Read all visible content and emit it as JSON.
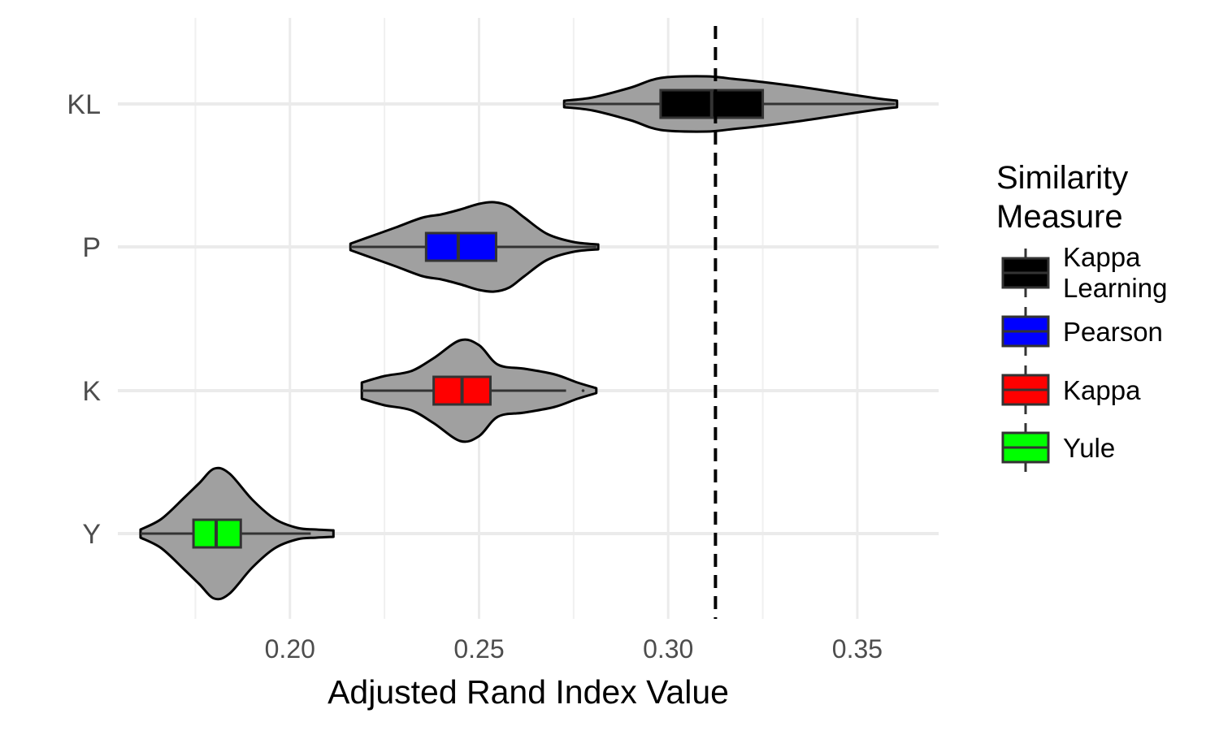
{
  "chart_data": {
    "type": "violin",
    "orientation": "horizontal",
    "title": "",
    "xlabel": "Adjusted Rand Index Value",
    "ylabel": "",
    "xlim": [
      0.1545,
      0.3715
    ],
    "x_ticks": [
      0.2,
      0.25,
      0.3,
      0.35
    ],
    "x_tick_labels": [
      "0.20",
      "0.25",
      "0.30",
      "0.35"
    ],
    "x_minor_ticks": [
      0.175,
      0.225,
      0.275,
      0.325
    ],
    "categories": [
      "KL",
      "P",
      "K",
      "Y"
    ],
    "reference_line": {
      "x": 0.3125,
      "style": "dashed",
      "color": "#000000"
    },
    "violin_fill": "#a0a0a0",
    "grid": true,
    "legend": {
      "title": [
        "Similarity",
        "Measure"
      ],
      "position": "right",
      "items": [
        {
          "label": [
            "Kappa",
            "Learning"
          ],
          "color": "#000000"
        },
        {
          "label": [
            "Pearson"
          ],
          "color": "#0000ff"
        },
        {
          "label": [
            "Kappa"
          ],
          "color": "#ff0000"
        },
        {
          "label": [
            "Yule"
          ],
          "color": "#00ff00"
        }
      ]
    },
    "series": [
      {
        "category": "KL",
        "color": "#000000",
        "box": {
          "q1": 0.298,
          "median": 0.3115,
          "q3": 0.325,
          "whisker_low": 0.2725,
          "whisker_high": 0.36
        },
        "density": [
          [
            0.2725,
            4
          ],
          [
            0.28,
            8
          ],
          [
            0.29,
            20
          ],
          [
            0.298,
            32
          ],
          [
            0.31,
            34
          ],
          [
            0.317,
            31
          ],
          [
            0.325,
            27
          ],
          [
            0.335,
            21
          ],
          [
            0.345,
            14
          ],
          [
            0.355,
            7
          ],
          [
            0.3605,
            4
          ]
        ]
      },
      {
        "category": "P",
        "color": "#0000ff",
        "box": {
          "q1": 0.236,
          "median": 0.2445,
          "q3": 0.2545,
          "whisker_low": 0.216,
          "whisker_high": 0.281
        },
        "density": [
          [
            0.216,
            4
          ],
          [
            0.222,
            14
          ],
          [
            0.228,
            24
          ],
          [
            0.235,
            36
          ],
          [
            0.24,
            40
          ],
          [
            0.245,
            46
          ],
          [
            0.25,
            53
          ],
          [
            0.254,
            55
          ],
          [
            0.258,
            50
          ],
          [
            0.262,
            36
          ],
          [
            0.268,
            16
          ],
          [
            0.275,
            6
          ],
          [
            0.2815,
            3
          ]
        ]
      },
      {
        "category": "K",
        "color": "#ff0000",
        "box": {
          "q1": 0.238,
          "median": 0.2455,
          "q3": 0.253,
          "whisker_low": 0.219,
          "whisker_high": 0.273
        },
        "density": [
          [
            0.219,
            10
          ],
          [
            0.225,
            18
          ],
          [
            0.232,
            24
          ],
          [
            0.238,
            40
          ],
          [
            0.245,
            62
          ],
          [
            0.25,
            56
          ],
          [
            0.255,
            32
          ],
          [
            0.262,
            27
          ],
          [
            0.27,
            20
          ],
          [
            0.276,
            10
          ],
          [
            0.281,
            3
          ]
        ],
        "outliers": [
          0.2775
        ]
      },
      {
        "category": "Y",
        "color": "#00ff00",
        "box": {
          "q1": 0.1745,
          "median": 0.1805,
          "q3": 0.187,
          "whisker_low": 0.1605,
          "whisker_high": 0.2055
        },
        "density": [
          [
            0.1605,
            5
          ],
          [
            0.166,
            18
          ],
          [
            0.172,
            44
          ],
          [
            0.176,
            62
          ],
          [
            0.18,
            80
          ],
          [
            0.184,
            74
          ],
          [
            0.19,
            42
          ],
          [
            0.196,
            18
          ],
          [
            0.202,
            7
          ],
          [
            0.207,
            5
          ],
          [
            0.2115,
            4
          ]
        ]
      }
    ]
  }
}
